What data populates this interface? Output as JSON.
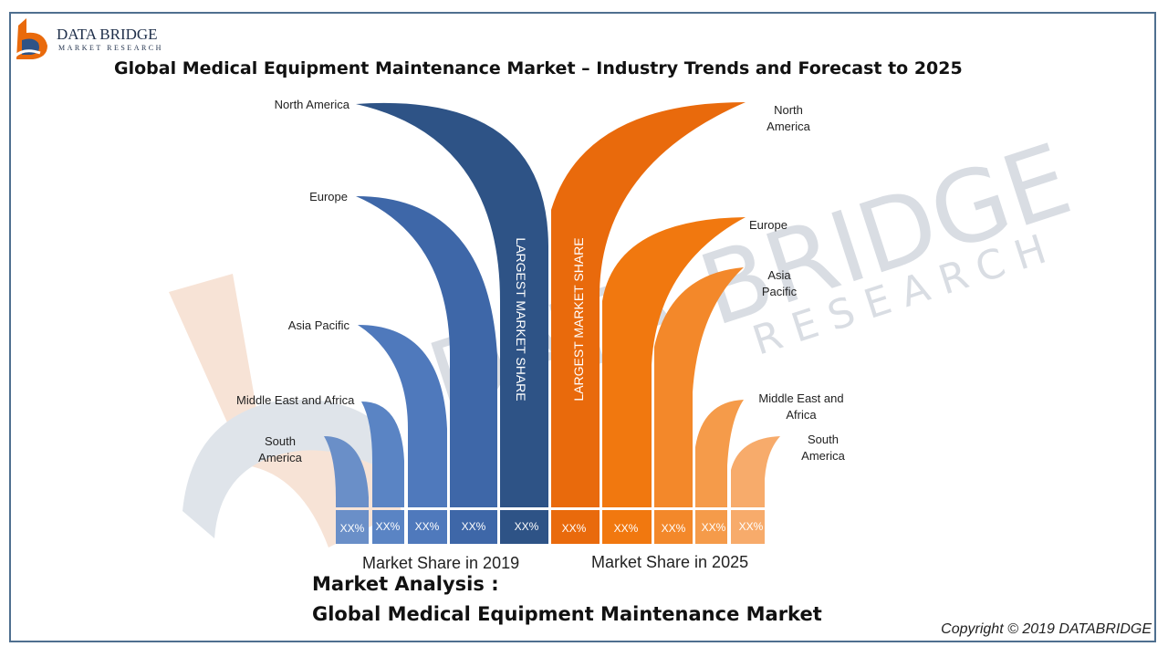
{
  "logo": {
    "brand": "DATA BRIDGE",
    "tagline": "MARKET RESEARCH"
  },
  "title": "Global Medical Equipment Maintenance Market – Industry Trends and Forecast to 2025",
  "left": {
    "caption": "Market Share in 2019",
    "vertical": "LARGEST MARKET SHARE",
    "labels": {
      "north_america": "North America",
      "europe": "Europe",
      "asia_pacific": "Asia Pacific",
      "mea": "Middle East and Africa",
      "sa1": "South",
      "sa2": "America"
    },
    "values": [
      "XX%",
      "XX%",
      "XX%",
      "XX%",
      "XX%"
    ]
  },
  "right": {
    "caption": "Market Share in 2025",
    "vertical": "LARGEST MARKET SHARE",
    "labels": {
      "na1": "North",
      "na2": "America",
      "europe": "Europe",
      "ap1": "Asia",
      "ap2": "Pacific",
      "mea1": "Middle East and",
      "mea2": "Africa",
      "sa1": "South",
      "sa2": "America"
    },
    "values": [
      "XX%",
      "XX%",
      "XX%",
      "XX%",
      "XX%"
    ]
  },
  "analysis": {
    "line1": "Market Analysis :",
    "line2": "Global Medical Equipment Maintenance Market"
  },
  "watermark": {
    "brand": "DATA BRIDGE",
    "tagline": "RESEARCH"
  },
  "copyright": "Copyright © 2019 DATABRIDGE",
  "colors": {
    "blue": [
      "#6a8fc8",
      "#5a84c4",
      "#4f79bc",
      "#3e67a8",
      "#2e5386"
    ],
    "orange": [
      "#e96a0c",
      "#f1780f",
      "#f3882a",
      "#f59b4a",
      "#f7ab6b"
    ]
  }
}
